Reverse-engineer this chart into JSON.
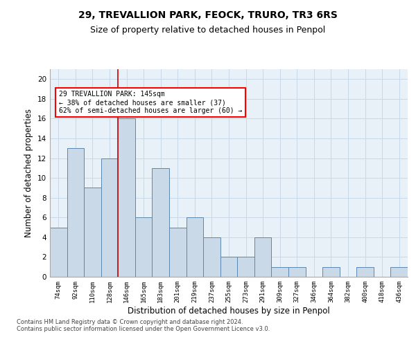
{
  "title1": "29, TREVALLION PARK, FEOCK, TRURO, TR3 6RS",
  "title2": "Size of property relative to detached houses in Penpol",
  "xlabel": "Distribution of detached houses by size in Penpol",
  "ylabel": "Number of detached properties",
  "categories": [
    "74sqm",
    "92sqm",
    "110sqm",
    "128sqm",
    "146sqm",
    "165sqm",
    "183sqm",
    "201sqm",
    "219sqm",
    "237sqm",
    "255sqm",
    "273sqm",
    "291sqm",
    "309sqm",
    "327sqm",
    "346sqm",
    "364sqm",
    "382sqm",
    "400sqm",
    "418sqm",
    "436sqm"
  ],
  "values": [
    5,
    13,
    9,
    12,
    16,
    6,
    11,
    5,
    6,
    4,
    2,
    2,
    4,
    1,
    1,
    0,
    1,
    0,
    1,
    0,
    1
  ],
  "bar_color": "#c9d9e8",
  "bar_edge_color": "#5a87b0",
  "highlight_index": 4,
  "annotation_text": "29 TREVALLION PARK: 145sqm\n← 38% of detached houses are smaller (37)\n62% of semi-detached houses are larger (60) →",
  "annotation_box_color": "white",
  "annotation_box_edge_color": "red",
  "red_line_color": "#cc0000",
  "ylim": [
    0,
    21
  ],
  "yticks": [
    0,
    2,
    4,
    6,
    8,
    10,
    12,
    14,
    16,
    18,
    20
  ],
  "footer_text": "Contains HM Land Registry data © Crown copyright and database right 2024.\nContains public sector information licensed under the Open Government Licence v3.0.",
  "grid_color": "#c8d8e8",
  "plot_bg_color": "#e8f0f8",
  "title1_fontsize": 10,
  "title2_fontsize": 9,
  "xlabel_fontsize": 8.5,
  "ylabel_fontsize": 8.5
}
